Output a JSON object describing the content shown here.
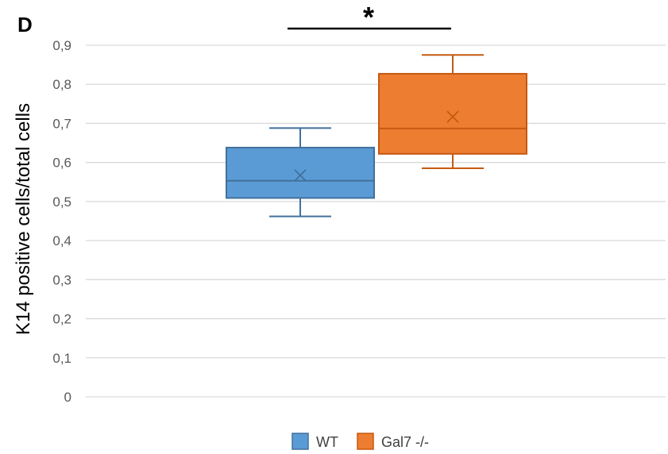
{
  "chart_data": {
    "type": "box",
    "panel_label": "D",
    "ylabel": "K14 positive cells/total cells",
    "ylim": [
      0,
      0.9
    ],
    "y_ticks": [
      "0",
      "0,1",
      "0,2",
      "0,3",
      "0,4",
      "0,5",
      "0,6",
      "0,7",
      "0,8",
      "0,9"
    ],
    "y_tick_values": [
      0,
      0.1,
      0.2,
      0.3,
      0.4,
      0.5,
      0.6,
      0.7,
      0.8,
      0.9
    ],
    "grid": true,
    "legend_position": "bottom",
    "significance": {
      "between": [
        "WT",
        "Gal7 -/-"
      ],
      "label": "*"
    },
    "series": [
      {
        "name": "WT",
        "color": "#5B9BD5",
        "stroke": "#41719C",
        "min": 0.462,
        "q1": 0.509,
        "median": 0.553,
        "q3": 0.638,
        "max": 0.688,
        "mean": 0.567
      },
      {
        "name": "Gal7 -/-",
        "color": "#ED7D31",
        "stroke": "#C55A11",
        "min": 0.585,
        "q1": 0.622,
        "median": 0.687,
        "q3": 0.827,
        "max": 0.875,
        "mean": 0.717
      }
    ]
  }
}
